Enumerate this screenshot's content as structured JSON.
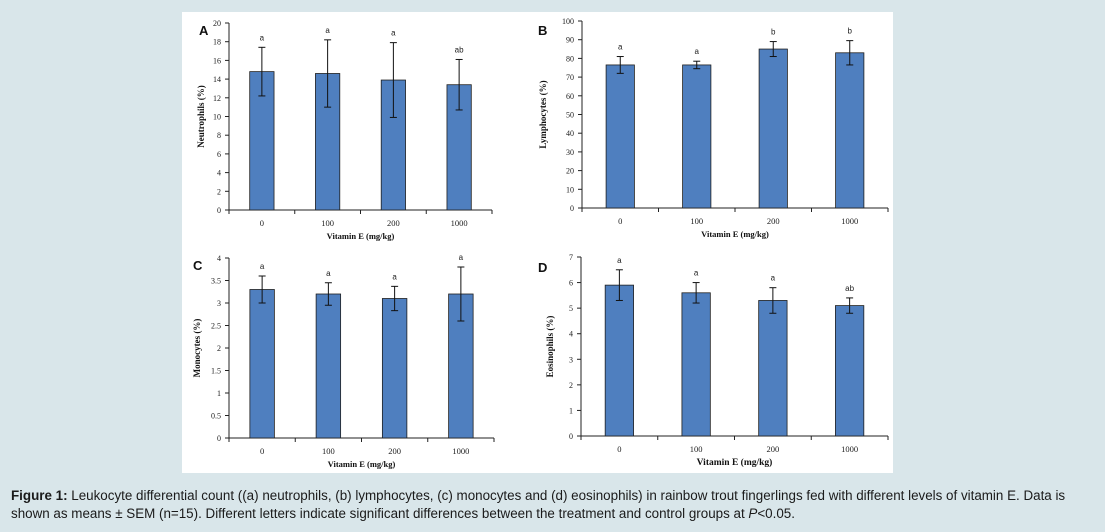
{
  "figure": {
    "caption_label": "Figure 1:",
    "caption_text_1": " Leukocyte differential count ((a) neutrophils, (b) lymphocytes, (c) monocytes and (d) eosinophils) in rainbow trout fingerlings fed with different levels of vitamin E. Data is shown as means ± SEM (n=15). Different letters indicate significant differences between the treatment and control groups at ",
    "caption_p": "P",
    "caption_text_2": "<0.05."
  },
  "colors": {
    "bar": "#4f7fbf",
    "bar_edge": "#1f1f1f",
    "axis": "#222222"
  },
  "chart_data": [
    {
      "panel": "A",
      "type": "bar",
      "categories": [
        "0",
        "100",
        "200",
        "1000"
      ],
      "values": [
        14.8,
        14.6,
        13.9,
        13.4
      ],
      "errors": [
        2.6,
        3.6,
        4.0,
        2.7
      ],
      "letters": [
        "a",
        "a",
        "a",
        "ab"
      ],
      "xlabel": "Vitamin E (mg/kg)",
      "ylabel": "Neutrophils (%)",
      "ylim": [
        0,
        20
      ],
      "yticks": [
        0,
        2,
        4,
        6,
        8,
        10,
        12,
        14,
        16,
        18,
        20
      ]
    },
    {
      "panel": "B",
      "type": "bar",
      "categories": [
        "0",
        "100",
        "200",
        "1000"
      ],
      "values": [
        76.5,
        76.5,
        85.0,
        83.0
      ],
      "errors": [
        4.5,
        2.0,
        4.0,
        6.5
      ],
      "letters": [
        "a",
        "a",
        "b",
        "b"
      ],
      "xlabel": "Vitamin E (mg/kg)",
      "ylabel": "Lymphocytes (%)",
      "ylim": [
        0,
        100
      ],
      "yticks": [
        0,
        10,
        20,
        30,
        40,
        50,
        60,
        70,
        80,
        90,
        100
      ]
    },
    {
      "panel": "C",
      "type": "bar",
      "categories": [
        "0",
        "100",
        "200",
        "1000"
      ],
      "values": [
        3.3,
        3.2,
        3.1,
        3.2
      ],
      "errors": [
        0.3,
        0.25,
        0.27,
        0.6
      ],
      "letters": [
        "a",
        "a",
        "a",
        "a"
      ],
      "xlabel": "Vitamin E (mg/kg)",
      "ylabel": "Monocytes (%)",
      "ylim": [
        0,
        4
      ],
      "yticks": [
        0,
        0.5,
        1,
        1.5,
        2,
        2.5,
        3,
        3.5,
        4
      ]
    },
    {
      "panel": "D",
      "type": "bar",
      "categories": [
        "0",
        "100",
        "200",
        "1000"
      ],
      "values": [
        5.9,
        5.6,
        5.3,
        5.1
      ],
      "errors": [
        0.6,
        0.4,
        0.5,
        0.3
      ],
      "letters": [
        "a",
        "a",
        "a",
        "ab"
      ],
      "xlabel": "Vitamin E (mg/kg)",
      "ylabel": "Eosinophils (%)",
      "ylim": [
        0,
        7
      ],
      "yticks": [
        0,
        1,
        2,
        3,
        4,
        5,
        6,
        7
      ]
    }
  ]
}
